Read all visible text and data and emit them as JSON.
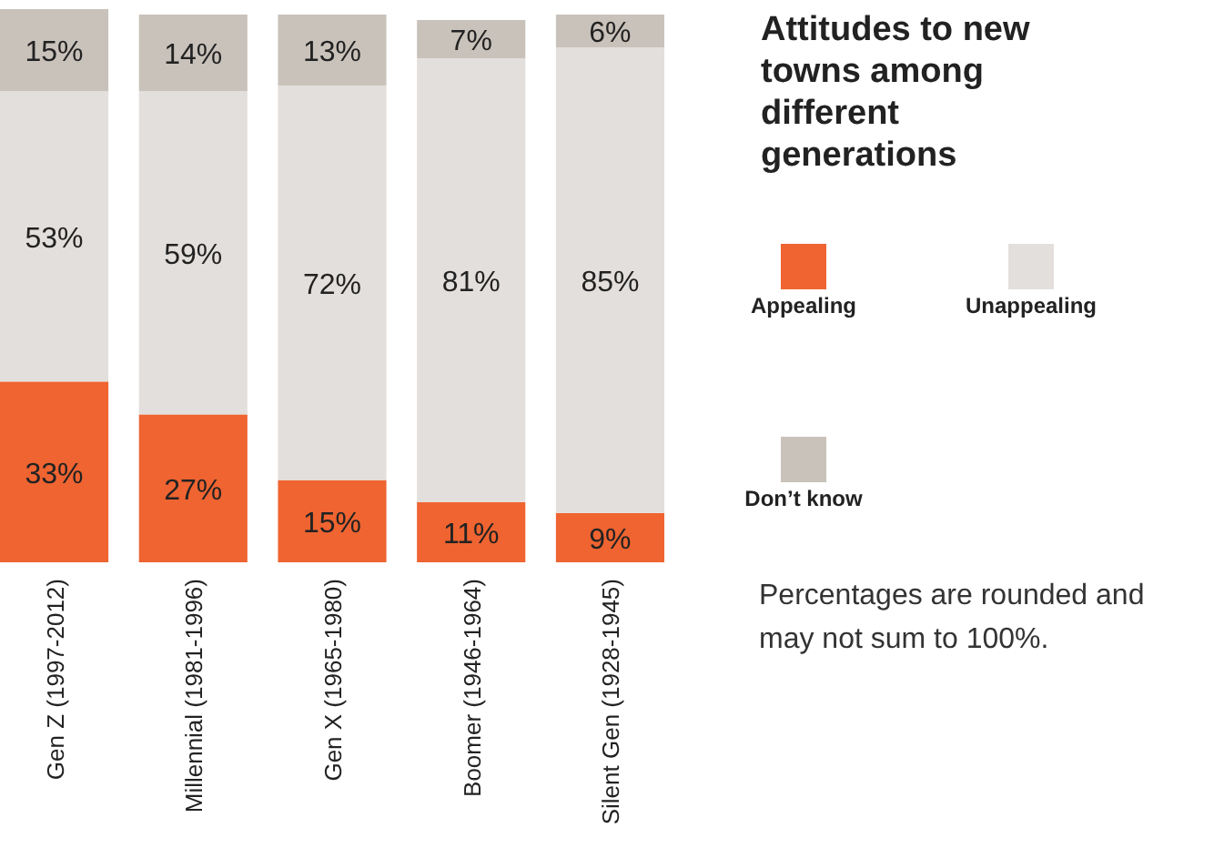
{
  "chart_data": {
    "type": "bar",
    "stacked": true,
    "title": "Attitudes to new towns among different generations",
    "categories": [
      "Gen Z (1997-2012)",
      "Millennial (1981-1996)",
      "Gen X (1965-1980)",
      "Boomer (1946-1964)",
      "Silent Gen (1928-1945)"
    ],
    "series": [
      {
        "name": "Appealing",
        "color": "#ef6431",
        "values": [
          33,
          27,
          15,
          11,
          9
        ],
        "value_labels": [
          "33%",
          "27%",
          "15%",
          "11%",
          "9%"
        ]
      },
      {
        "name": "Unappealing",
        "color": "#e3dfdc",
        "values": [
          53,
          59,
          72,
          81,
          85
        ],
        "value_labels": [
          "53%",
          "59%",
          "72%",
          "81%",
          "85%"
        ]
      },
      {
        "name": "Don’t know",
        "color": "#c9c2bb",
        "values": [
          15,
          14,
          13,
          7,
          6
        ],
        "value_labels": [
          "15%",
          "14%",
          "13%",
          "7%",
          "6%"
        ]
      }
    ],
    "legend": "right",
    "annotations": [
      "Percentages are rounded and may not sum to 100%."
    ]
  }
}
